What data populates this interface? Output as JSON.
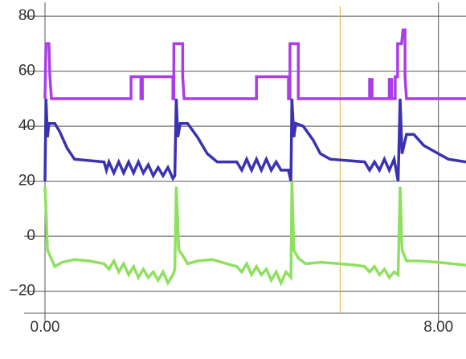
{
  "chart_data": {
    "type": "line",
    "xlim": [
      0,
      8.56
    ],
    "xticks": [
      {
        "value": 0,
        "label": "0.00"
      },
      {
        "value": 8,
        "label": "8.00"
      }
    ],
    "ylim": [
      -28,
      85
    ],
    "yticks": [
      80,
      60,
      40,
      20,
      0,
      {
        "value": -20,
        "label": "−20"
      }
    ],
    "grid": true,
    "cursor_x": 6.0,
    "cursor_color": "#e0b030",
    "series": [
      {
        "color": "#a93ee8",
        "x": [
          0,
          0.02,
          0.08,
          0.1,
          0.13,
          1.75,
          1.75,
          1.95,
          1.95,
          1.98,
          1.98,
          2.6,
          2.6,
          2.62,
          2.62,
          2.8,
          2.8,
          2.83,
          4.3,
          4.3,
          4.95,
          4.95,
          4.98,
          4.98,
          5.15,
          5.15,
          6.6,
          6.6,
          6.65,
          6.65,
          7.0,
          7.0,
          7.05,
          7.05,
          7.12,
          7.12,
          7.17,
          7.17,
          7.25,
          7.28,
          7.32,
          7.32,
          7.35,
          8.56
        ],
        "values": [
          50,
          70,
          70,
          58,
          50,
          50,
          58,
          58,
          50,
          50,
          58,
          58,
          50,
          50,
          70,
          70,
          58,
          50,
          50,
          58,
          58,
          50,
          50,
          70,
          70,
          50,
          50,
          57,
          57,
          50,
          50,
          57,
          57,
          50,
          50,
          58,
          58,
          70,
          70,
          75,
          75,
          58,
          50,
          50
        ]
      },
      {
        "color": "#3a32b0",
        "x": [
          0,
          0.02,
          0.05,
          0.08,
          0.2,
          0.3,
          0.45,
          0.6,
          1.2,
          1.25,
          1.3,
          1.4,
          1.5,
          1.6,
          1.7,
          1.8,
          1.9,
          2.0,
          2.1,
          2.2,
          2.3,
          2.4,
          2.5,
          2.6,
          2.64,
          2.67,
          2.7,
          2.75,
          2.9,
          3.1,
          3.3,
          3.5,
          3.9,
          4.0,
          4.1,
          4.2,
          4.3,
          4.4,
          4.5,
          4.6,
          4.7,
          4.8,
          4.95,
          5.0,
          5.02,
          5.06,
          5.1,
          5.25,
          5.45,
          5.6,
          5.8,
          6.5,
          6.6,
          6.7,
          6.8,
          6.9,
          7.0,
          7.1,
          7.18,
          7.22,
          7.26,
          7.35,
          7.5,
          7.7,
          8.0,
          8.2,
          8.56
        ],
        "values": [
          20,
          50,
          36,
          41,
          41,
          38,
          32,
          28,
          27,
          24,
          27,
          23,
          27,
          23,
          27,
          23,
          27,
          23,
          26,
          22,
          25,
          22,
          25,
          21,
          22,
          50,
          36,
          41,
          41,
          36,
          30,
          27,
          27,
          24,
          28,
          24,
          28,
          24,
          28,
          24,
          27,
          24,
          24,
          20,
          50,
          36,
          41,
          40,
          35,
          30,
          28,
          27,
          24,
          27,
          24,
          28,
          24,
          28,
          20,
          50,
          30,
          37,
          37,
          33,
          30,
          28,
          27
        ]
      },
      {
        "color": "#8fe060",
        "x": [
          0,
          0.02,
          0.05,
          0.1,
          0.2,
          0.35,
          0.6,
          0.9,
          1.2,
          1.3,
          1.4,
          1.5,
          1.6,
          1.7,
          1.8,
          1.9,
          2.0,
          2.1,
          2.2,
          2.3,
          2.4,
          2.5,
          2.6,
          2.64,
          2.67,
          2.72,
          2.8,
          2.9,
          3.1,
          3.4,
          3.7,
          3.9,
          4.0,
          4.1,
          4.2,
          4.3,
          4.4,
          4.5,
          4.6,
          4.7,
          4.8,
          4.9,
          5.0,
          5.02,
          5.06,
          5.15,
          5.3,
          5.6,
          6.0,
          6.3,
          6.5,
          6.6,
          6.7,
          6.8,
          6.9,
          7.0,
          7.1,
          7.18,
          7.22,
          7.26,
          7.35,
          7.6,
          8.0,
          8.56
        ],
        "values": [
          18,
          10,
          -5,
          -7,
          -11,
          -9.5,
          -8.5,
          -9,
          -10,
          -12,
          -9,
          -13,
          -10,
          -14,
          -11,
          -15,
          -12,
          -15,
          -13,
          -16,
          -13,
          -17,
          -14,
          -12,
          18,
          -5,
          -7,
          -10,
          -9,
          -8.5,
          -10,
          -11,
          -13,
          -10,
          -14,
          -11,
          -14,
          -12,
          -16,
          -13,
          -17,
          -13,
          -15,
          20,
          -5,
          -8,
          -10,
          -9.5,
          -10,
          -10.5,
          -11,
          -13,
          -11,
          -14,
          -12,
          -15,
          -13,
          -14,
          18,
          -5,
          -9,
          -9,
          -9.5,
          -10.5
        ]
      }
    ]
  }
}
